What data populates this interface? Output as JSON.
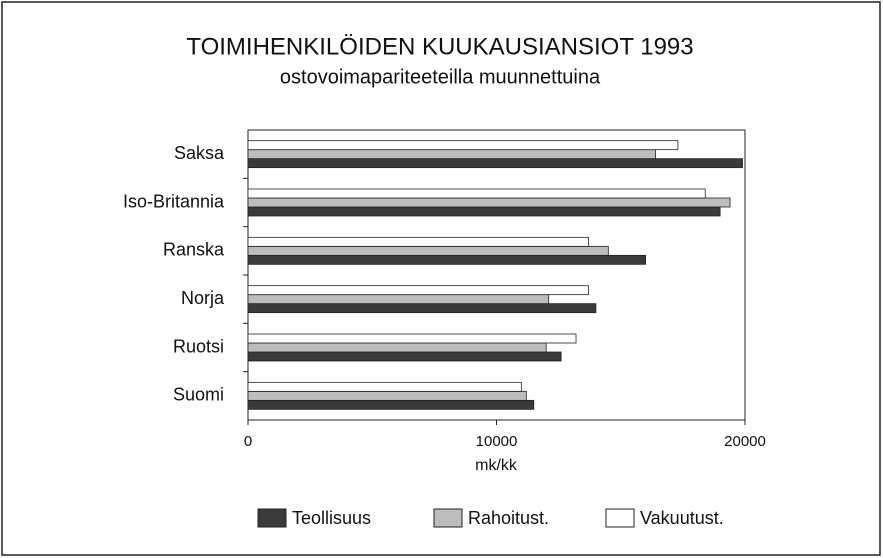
{
  "chart_data": {
    "type": "hbar",
    "title": "TOIMIHENKILÖIDEN KUUKAUSIANSIOT 1993",
    "subtitle": "ostovoimapariteeteilla muunnettuina",
    "x_label": "mk/kk",
    "categories": [
      "Saksa",
      "Iso-Britannia",
      "Ranska",
      "Norja",
      "Ruotsi",
      "Suomi"
    ],
    "series": [
      {
        "name": "Teollisuus",
        "color": "#3a3a3a",
        "values": [
          19900,
          19000,
          16000,
          14000,
          12600,
          11500
        ]
      },
      {
        "name": "Rahoitust.",
        "color": "#bdbdbd",
        "values": [
          16400,
          19400,
          14500,
          12100,
          12000,
          11200
        ]
      },
      {
        "name": "Vakuutust.",
        "color": "#ffffff",
        "values": [
          17300,
          18400,
          13700,
          13700,
          13200,
          11000
        ]
      }
    ],
    "xlim": [
      0,
      20000
    ],
    "xticks": [
      0,
      10000,
      20000
    ],
    "grid": false,
    "legend": "bottom"
  }
}
